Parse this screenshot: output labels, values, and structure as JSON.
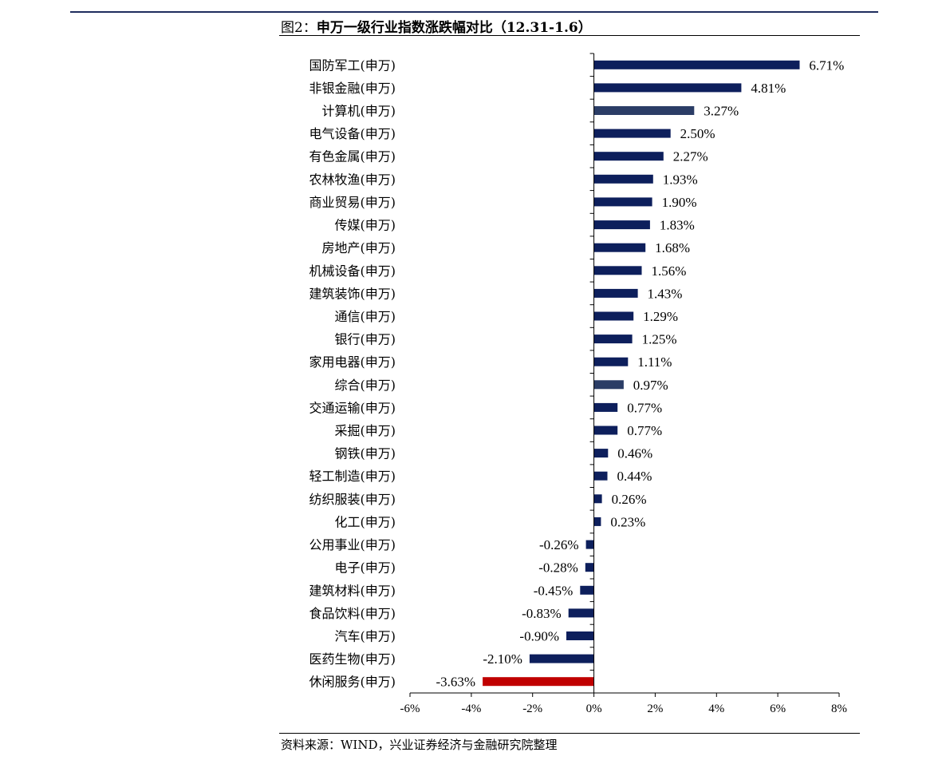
{
  "header": {
    "title_prefix": "图2：",
    "title_main": "申万一级行业指数涨跌幅对比（12.31-1.6）"
  },
  "footer": {
    "source": "资料来源：WIND，兴业证券经济与金融研究院整理"
  },
  "colors": {
    "default_bar": "#0d1f5c",
    "highlight_bar": "#2b3d66",
    "negative_highlight": "#c00000",
    "axis": "#000000"
  },
  "chart_data": {
    "type": "bar",
    "orientation": "horizontal",
    "title": "申万一级行业指数涨跌幅对比（12.31-1.6）",
    "xlim": [
      -6,
      8
    ],
    "xticks": [
      -6,
      -4,
      -2,
      0,
      2,
      4,
      6,
      8
    ],
    "xtick_labels": [
      "-6%",
      "-4%",
      "-2%",
      "0%",
      "2%",
      "4%",
      "6%",
      "8%"
    ],
    "categories": [
      "国防军工(申万)",
      "非银金融(申万)",
      "计算机(申万)",
      "电气设备(申万)",
      "有色金属(申万)",
      "农林牧渔(申万)",
      "商业贸易(申万)",
      "传媒(申万)",
      "房地产(申万)",
      "机械设备(申万)",
      "建筑装饰(申万)",
      "通信(申万)",
      "银行(申万)",
      "家用电器(申万)",
      "综合(申万)",
      "交通运输(申万)",
      "采掘(申万)",
      "钢铁(申万)",
      "轻工制造(申万)",
      "纺织服装(申万)",
      "化工(申万)",
      "公用事业(申万)",
      "电子(申万)",
      "建筑材料(申万)",
      "食品饮料(申万)",
      "汽车(申万)",
      "医药生物(申万)",
      "休闲服务(申万)"
    ],
    "values": [
      6.71,
      4.81,
      3.27,
      2.5,
      2.27,
      1.93,
      1.9,
      1.83,
      1.68,
      1.56,
      1.43,
      1.29,
      1.25,
      1.11,
      0.97,
      0.77,
      0.77,
      0.46,
      0.44,
      0.26,
      0.23,
      -0.26,
      -0.28,
      -0.45,
      -0.83,
      -0.9,
      -2.1,
      -3.63
    ],
    "value_labels": [
      "6.71%",
      "4.81%",
      "3.27%",
      "2.50%",
      "2.27%",
      "1.93%",
      "1.90%",
      "1.83%",
      "1.68%",
      "1.56%",
      "1.43%",
      "1.29%",
      "1.25%",
      "1.11%",
      "0.97%",
      "0.77%",
      "0.77%",
      "0.46%",
      "0.44%",
      "0.26%",
      "0.23%",
      "-0.26%",
      "-0.28%",
      "-0.45%",
      "-0.83%",
      "-0.90%",
      "-2.10%",
      "-3.63%"
    ],
    "bar_color_keys": [
      "default_bar",
      "default_bar",
      "highlight_bar",
      "default_bar",
      "default_bar",
      "default_bar",
      "default_bar",
      "default_bar",
      "default_bar",
      "default_bar",
      "default_bar",
      "default_bar",
      "default_bar",
      "default_bar",
      "highlight_bar",
      "default_bar",
      "default_bar",
      "default_bar",
      "default_bar",
      "default_bar",
      "default_bar",
      "default_bar",
      "default_bar",
      "default_bar",
      "default_bar",
      "default_bar",
      "default_bar",
      "negative_highlight"
    ],
    "unit": "%",
    "grid": false,
    "legend": "none"
  }
}
